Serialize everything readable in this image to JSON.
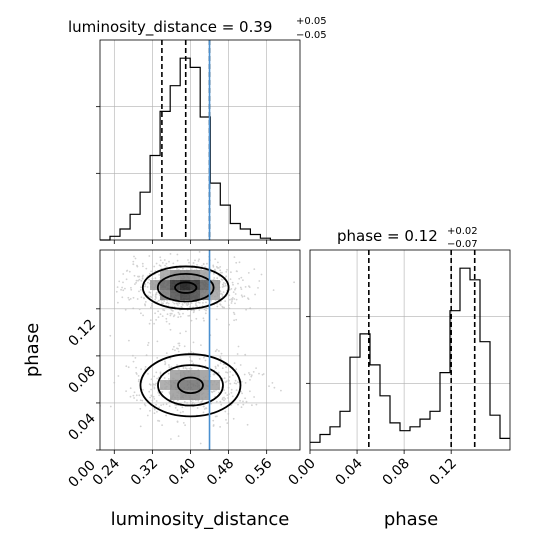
{
  "chart_data": [
    {
      "type": "histogram",
      "panel": "top-left",
      "title_main": "luminosity_distance = 0.39",
      "title_sup": "+0.05",
      "title_sub": "−0.05",
      "x_range": [
        0.21,
        0.63
      ],
      "bins_edges": [
        0.21,
        0.2311,
        0.2521,
        0.2732,
        0.2942,
        0.3153,
        0.3363,
        0.3574,
        0.3784,
        0.3995,
        0.4205,
        0.4416,
        0.4626,
        0.4837,
        0.5047,
        0.5258,
        0.5468,
        0.5679,
        0.5889,
        0.61,
        0.63
      ],
      "counts": [
        0,
        2,
        6,
        14,
        26,
        46,
        70,
        84,
        99,
        94,
        67,
        31,
        19,
        9,
        6,
        3,
        1,
        0,
        0,
        0
      ],
      "quantiles": [
        0.34,
        0.39,
        0.44
      ],
      "truth": 0.44
    },
    {
      "type": "histogram",
      "panel": "bottom-right",
      "title_main": "phase = 0.12",
      "title_sup": "+0.02",
      "title_sub": "−0.07",
      "x_range": [
        0.0,
        0.17
      ],
      "bins_edges": [
        0.0,
        0.0085,
        0.017,
        0.0255,
        0.034,
        0.0425,
        0.051,
        0.0595,
        0.068,
        0.0765,
        0.085,
        0.0935,
        0.102,
        0.1105,
        0.119,
        0.1275,
        0.136,
        0.1445,
        0.153,
        0.1615,
        0.17
      ],
      "counts": [
        4,
        8,
        12,
        20,
        48,
        60,
        44,
        28,
        14,
        10,
        12,
        16,
        20,
        40,
        72,
        94,
        88,
        56,
        18,
        6
      ],
      "quantiles": [
        0.05,
        0.12,
        0.14
      ]
    },
    {
      "type": "2d-density",
      "panel": "bottom-left",
      "x_range": [
        0.21,
        0.63
      ],
      "y_range": [
        0.0,
        0.17
      ],
      "truth_x": 0.44,
      "modes": [
        {
          "x": 0.39,
          "y": 0.138,
          "sx": 0.045,
          "sy": 0.009,
          "weight": 1.0
        },
        {
          "x": 0.4,
          "y": 0.055,
          "sx": 0.05,
          "sy": 0.012,
          "weight": 0.55
        }
      ]
    }
  ],
  "axes": {
    "x_ticks_ld": [
      "0.24",
      "0.32",
      "0.40",
      "0.48",
      "0.56"
    ],
    "x_tick_vals_ld": [
      0.24,
      0.32,
      0.4,
      0.48,
      0.56
    ],
    "y_ticks_phase": [
      "0.00",
      "0.04",
      "0.08",
      "0.12"
    ],
    "y_tick_vals_phase": [
      0.0,
      0.04,
      0.08,
      0.12
    ],
    "x_ticks_phase": [
      "0.00",
      "0.04",
      "0.08",
      "0.12"
    ],
    "x_tick_vals_phase": [
      0.0,
      0.04,
      0.08,
      0.12
    ],
    "xlabel_left": "luminosity_distance",
    "xlabel_right": "phase",
    "ylabel_left": "phase"
  },
  "colors": {
    "line": "#000000",
    "truth": "#4a90d0",
    "grid": "#b0b0b0",
    "scatter": "#bfbfbf"
  }
}
